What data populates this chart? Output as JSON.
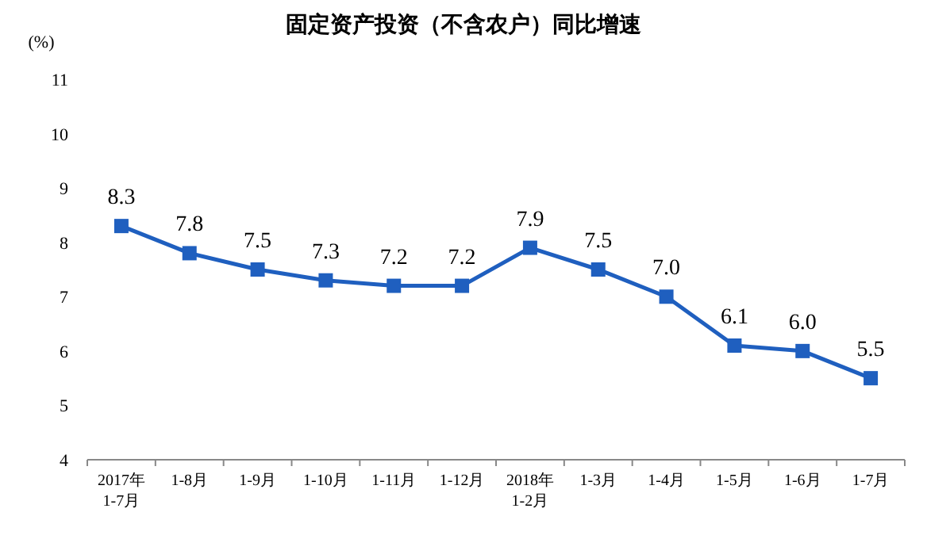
{
  "chart_data": {
    "type": "line",
    "title": "固定资产投资（不含农户）同比增速",
    "ylabel": "(%)",
    "categories": [
      "2017年\n1-7月",
      "1-8月",
      "1-9月",
      "1-10月",
      "1-11月",
      "1-12月",
      "2018年\n1-2月",
      "1-3月",
      "1-4月",
      "1-5月",
      "1-6月",
      "1-7月"
    ],
    "series": [
      {
        "color": "#1f5fbf",
        "values": [
          8.3,
          7.8,
          7.5,
          7.3,
          7.2,
          7.2,
          7.9,
          7.5,
          7.0,
          6.1,
          6.0,
          5.5
        ],
        "value_labels": [
          "8.3",
          "7.8",
          "7.5",
          "7.3",
          "7.2",
          "7.2",
          "7.9",
          "7.5",
          "7.0",
          "6.1",
          "6.0",
          "5.5"
        ]
      }
    ],
    "ylim": [
      4,
      11
    ],
    "yticks": [
      4,
      5,
      6,
      7,
      8,
      9,
      10,
      11
    ],
    "marker": "square",
    "grid": false
  }
}
